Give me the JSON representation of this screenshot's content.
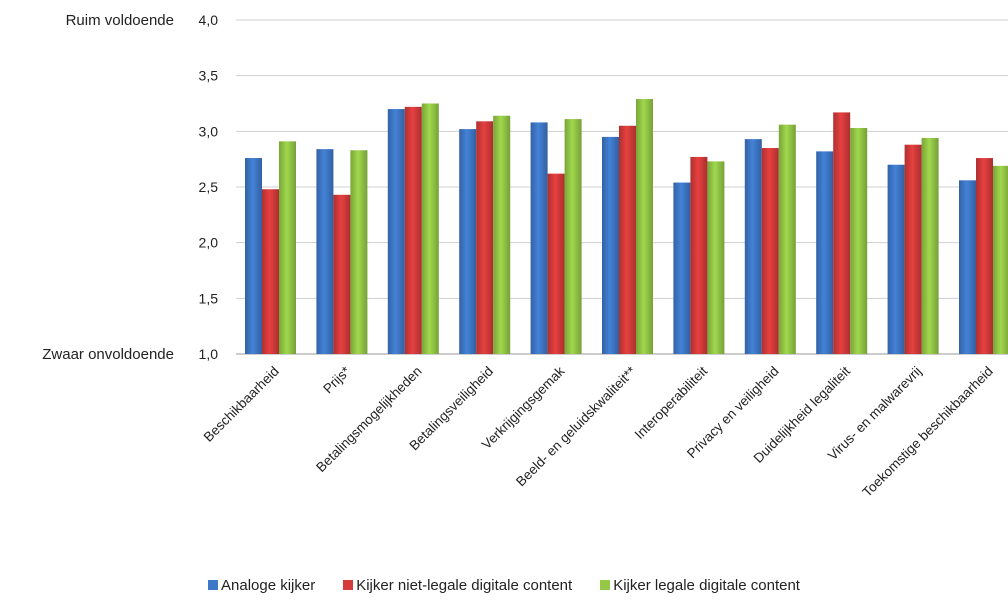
{
  "chart_data": {
    "type": "bar",
    "categories": [
      "Beschikbaarheid",
      "Prijs*",
      "Betalingsmogelijkheden",
      "Betalingsveiligheid",
      "Verkrijgingsgemak",
      "Beeld- en geluidskwaliteit**",
      "Interoperabiliteit",
      "Privacy en veiligheid",
      "Duidelijkheid legaliteit",
      "Virus- en malwarevrij",
      "Toekomstige beschikbaarheid"
    ],
    "series": [
      {
        "name": "Analoge kijker",
        "color": "#3E78C8",
        "values": [
          2.76,
          2.84,
          3.2,
          3.02,
          3.08,
          2.95,
          2.54,
          2.93,
          2.82,
          2.7,
          2.56
        ]
      },
      {
        "name": "Kijker niet-legale digitale content",
        "color": "#D63B3B",
        "values": [
          2.48,
          2.43,
          3.22,
          3.09,
          2.62,
          3.05,
          2.77,
          2.85,
          3.17,
          2.88,
          2.76
        ]
      },
      {
        "name": "Kijker legale digitale content",
        "color": "#94C846",
        "values": [
          2.91,
          2.83,
          3.25,
          3.14,
          3.11,
          3.29,
          2.73,
          3.06,
          3.03,
          2.94,
          2.69
        ]
      }
    ],
    "ylim": [
      1.0,
      4.0
    ],
    "yticks": [
      "1,0",
      "1,5",
      "2,0",
      "2,5",
      "3,0",
      "3,5",
      "4,0"
    ],
    "ytick_values": [
      1.0,
      1.5,
      2.0,
      2.5,
      3.0,
      3.5,
      4.0
    ],
    "y_top_label": "Ruim voldoende",
    "y_bottom_label": "Zwaar onvoldoende",
    "grid": true,
    "legend_position": "bottom"
  },
  "legend": [
    {
      "label": "Analoge kijker",
      "color": "#3E78C8"
    },
    {
      "label": "Kijker niet-legale digitale content",
      "color": "#D63B3B"
    },
    {
      "label": "Kijker legale digitale content",
      "color": "#94C846"
    }
  ]
}
